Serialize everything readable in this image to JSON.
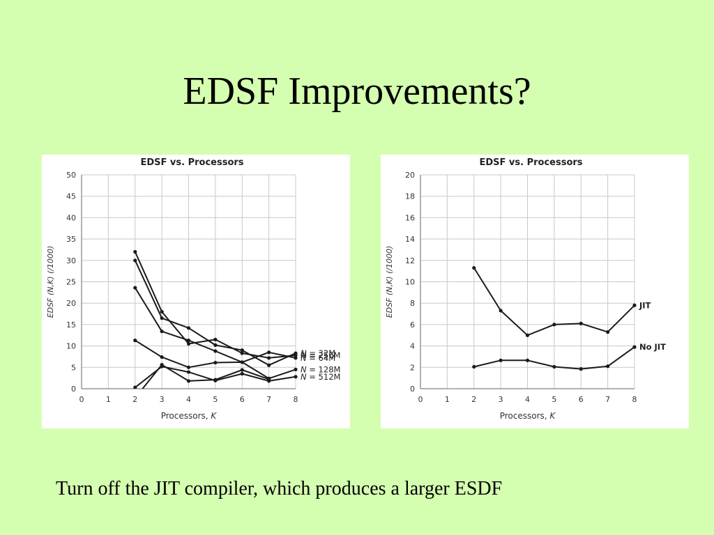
{
  "slide": {
    "title": "EDSF Improvements?",
    "caption": "Turn off the JIT compiler, which produces a larger ESDF"
  },
  "colors": {
    "background": "#d5ffb0",
    "panel": "#ffffff",
    "grid": "#c8c8c8",
    "line": "#1a1a1a"
  },
  "chart_data": [
    {
      "type": "line",
      "title": "EDSF vs. Processors",
      "xlabel_text": "Processors, ",
      "xlabel_var": "K",
      "ylabel": "EDSF (N,K) (/1000)",
      "xlim": [
        0,
        8
      ],
      "ylim": [
        0,
        50
      ],
      "xticks": [
        0,
        1,
        2,
        3,
        4,
        5,
        6,
        7,
        8
      ],
      "yticks": [
        0,
        5,
        10,
        15,
        20,
        25,
        30,
        35,
        40,
        45,
        50
      ],
      "grid": true,
      "label_layout": "series labels at line ends, overlapping",
      "series": [
        {
          "name": "N = 256M",
          "x": [
            2,
            3,
            4,
            5,
            6,
            7,
            8
          ],
          "y": [
            32,
            18,
            10.5,
            11.5,
            8.3,
            7.2,
            7.8
          ]
        },
        {
          "name": "N = 32M",
          "x": [
            2,
            3,
            4,
            5,
            6,
            7,
            8
          ],
          "y": [
            30,
            16.5,
            14.2,
            10.2,
            9,
            5.5,
            8.3
          ]
        },
        {
          "name": "N = 64M",
          "x": [
            2,
            3,
            4,
            5,
            6,
            7,
            8
          ],
          "y": [
            23.6,
            13.4,
            11.3,
            8.8,
            6.2,
            8.5,
            7.2
          ]
        },
        {
          "name": "N = 128M",
          "x": [
            2,
            3,
            4,
            5,
            6,
            7,
            8
          ],
          "y": [
            11.3,
            7.4,
            5,
            6.1,
            6.2,
            2.4,
            4.5
          ]
        },
        {
          "name": "N = 512M",
          "x": [
            2,
            3,
            4,
            5,
            6,
            7,
            8
          ],
          "y": [
            0.3,
            5.2,
            3.9,
            1.9,
            3.5,
            1.8,
            2.8
          ]
        },
        {
          "name": "",
          "x": [
            2.15,
            3,
            4,
            5,
            6,
            7
          ],
          "y": [
            -1,
            5.6,
            1.8,
            2.1,
            4.4,
            2.2
          ]
        }
      ]
    },
    {
      "type": "line",
      "title": "EDSF vs. Processors",
      "xlabel_text": "Processors, ",
      "xlabel_var": "K",
      "ylabel": "EDSF (N,K) (/1000)",
      "xlim": [
        0,
        8
      ],
      "ylim": [
        0,
        20
      ],
      "xticks": [
        0,
        1,
        2,
        3,
        4,
        5,
        6,
        7,
        8
      ],
      "yticks": [
        0,
        2,
        4,
        6,
        8,
        10,
        12,
        14,
        16,
        18,
        20
      ],
      "grid": true,
      "series": [
        {
          "name": "JIT",
          "x": [
            2,
            3,
            4,
            5,
            6,
            7,
            8
          ],
          "y": [
            11.3,
            7.3,
            5,
            6,
            6.1,
            5.3,
            7.8
          ]
        },
        {
          "name": "No JIT",
          "x": [
            2,
            3,
            4,
            5,
            6,
            7,
            8
          ],
          "y": [
            2.05,
            2.65,
            2.65,
            2.05,
            1.85,
            2.1,
            3.9
          ]
        }
      ]
    }
  ]
}
